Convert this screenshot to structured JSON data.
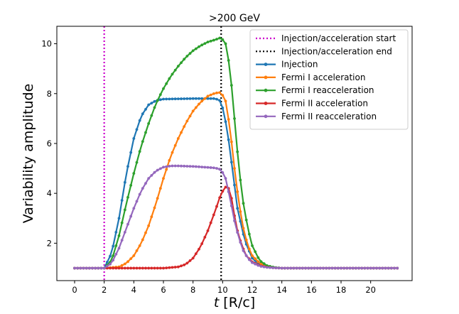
{
  "chart_data": {
    "type": "line",
    "title": ">200 GeV",
    "xlabel": "t [R/c]",
    "ylabel": "Variability amplitude",
    "xlim": [
      -1.2,
      22.8
    ],
    "ylim": [
      0.5,
      10.7
    ],
    "x_ticks": [
      0,
      2,
      4,
      6,
      8,
      10,
      12,
      14,
      16,
      18,
      20
    ],
    "y_ticks": [
      2,
      4,
      6,
      8,
      10
    ],
    "x_tick_labels": [
      "0",
      "2",
      "4",
      "6",
      "8",
      "10",
      "12",
      "14",
      "16",
      "18",
      "20"
    ],
    "y_tick_labels": [
      "2",
      "4",
      "6",
      "8",
      "10"
    ],
    "grid": false,
    "legend_position": "top-right",
    "vlines": [
      {
        "name": "Injection/acceleration start",
        "x": 2,
        "color": "#cc00cc",
        "style": "dotted"
      },
      {
        "name": "Injection/acceleration end",
        "x": 9.9,
        "color": "#000000",
        "style": "dotted"
      }
    ],
    "series": [
      {
        "name": "Injection",
        "color": "#1f77b4",
        "x": [
          2.0,
          2.5,
          3.0,
          3.5,
          4.0,
          4.5,
          5.0,
          5.5,
          6.0,
          7.0,
          8.0,
          9.0,
          9.5,
          9.9,
          10.3,
          10.7,
          11.0,
          11.5,
          12.0,
          12.5,
          13.0,
          13.5,
          14.0
        ],
        "y": [
          1.0,
          1.6,
          3.0,
          4.8,
          6.2,
          7.1,
          7.55,
          7.72,
          7.78,
          7.79,
          7.8,
          7.8,
          7.8,
          7.7,
          6.6,
          4.8,
          3.4,
          2.1,
          1.4,
          1.15,
          1.05,
          1.02,
          1.0
        ]
      },
      {
        "name": "Fermi I acceleration",
        "color": "#ff7f0e",
        "x": [
          2.0,
          3.0,
          3.5,
          4.0,
          4.5,
          5.0,
          5.5,
          6.0,
          6.5,
          7.0,
          7.5,
          8.0,
          8.5,
          9.0,
          9.5,
          9.9,
          10.2,
          10.5,
          10.8,
          11.1,
          11.4,
          11.7,
          12.0,
          12.5,
          13.0,
          13.5,
          14.0
        ],
        "y": [
          1.0,
          1.05,
          1.2,
          1.5,
          2.0,
          2.7,
          3.6,
          4.6,
          5.5,
          6.2,
          6.8,
          7.3,
          7.65,
          7.9,
          8.02,
          8.05,
          7.7,
          6.6,
          5.0,
          3.6,
          2.6,
          1.9,
          1.5,
          1.2,
          1.07,
          1.02,
          1.0
        ]
      },
      {
        "name": "Fermi I reacceleration",
        "color": "#2ca02c",
        "x": [
          2.0,
          2.5,
          3.0,
          3.5,
          4.0,
          4.5,
          5.0,
          5.5,
          6.0,
          6.5,
          7.0,
          7.5,
          8.0,
          8.5,
          9.0,
          9.5,
          9.9,
          10.2,
          10.5,
          10.8,
          11.1,
          11.4,
          11.7,
          12.0,
          12.5,
          13.0,
          13.5,
          14.0
        ],
        "y": [
          1.0,
          1.3,
          2.3,
          3.6,
          4.8,
          5.9,
          6.8,
          7.6,
          8.2,
          8.7,
          9.1,
          9.45,
          9.72,
          9.92,
          10.07,
          10.16,
          10.25,
          10.0,
          9.0,
          7.0,
          5.0,
          3.6,
          2.6,
          1.9,
          1.3,
          1.1,
          1.03,
          1.0
        ]
      },
      {
        "name": "Fermi II acceleration",
        "color": "#d62728",
        "x": [
          2.0,
          6.0,
          7.0,
          7.5,
          8.0,
          8.5,
          9.0,
          9.5,
          9.9,
          10.2,
          10.4,
          10.6,
          10.8,
          11.0,
          11.3,
          11.6,
          12.0,
          12.5,
          13.0,
          13.5,
          14.0
        ],
        "y": [
          1.0,
          1.0,
          1.05,
          1.15,
          1.4,
          1.85,
          2.5,
          3.3,
          4.0,
          4.25,
          4.2,
          3.8,
          3.1,
          2.5,
          1.9,
          1.5,
          1.25,
          1.1,
          1.04,
          1.01,
          1.0
        ]
      },
      {
        "name": "Fermi II reacceleration",
        "color": "#9467bd",
        "x": [
          2.0,
          2.5,
          3.0,
          3.5,
          4.0,
          4.5,
          5.0,
          5.5,
          6.0,
          6.5,
          7.0,
          8.0,
          9.0,
          9.5,
          9.9,
          10.2,
          10.5,
          10.8,
          11.1,
          11.4,
          11.7,
          12.0,
          12.5,
          13.0,
          13.5,
          14.0
        ],
        "y": [
          1.0,
          1.2,
          1.8,
          2.6,
          3.4,
          4.1,
          4.6,
          4.9,
          5.05,
          5.1,
          5.1,
          5.08,
          5.04,
          5.02,
          4.95,
          4.6,
          3.8,
          2.9,
          2.2,
          1.7,
          1.4,
          1.22,
          1.08,
          1.03,
          1.01,
          1.0
        ]
      }
    ],
    "baseline": {
      "x_start": 0,
      "x_end": 21.8,
      "y": 1.0,
      "step": 0.2
    }
  }
}
